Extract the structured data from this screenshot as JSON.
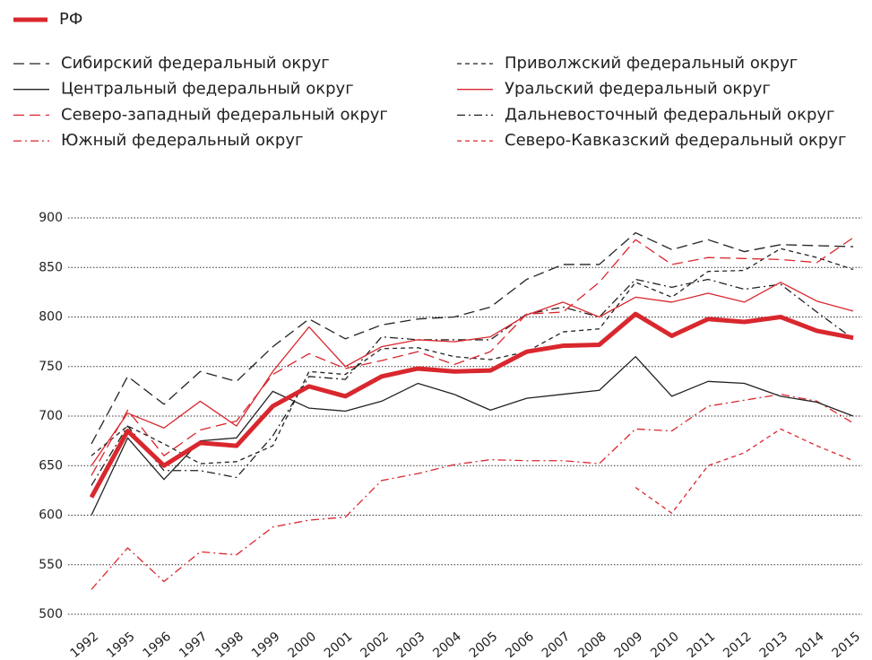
{
  "chart_data": {
    "type": "line",
    "categories": [
      "1992",
      "1995",
      "1996",
      "1997",
      "1998",
      "1999",
      "2000",
      "2001",
      "2002",
      "2003",
      "2004",
      "2005",
      "2006",
      "2007",
      "2008",
      "2009",
      "2010",
      "2011",
      "2012",
      "2013",
      "2014",
      "2015"
    ],
    "ylim": [
      500,
      900
    ],
    "yticks": [
      500,
      550,
      600,
      650,
      700,
      750,
      800,
      850,
      900
    ],
    "grid": true,
    "series": [
      {
        "name": "РФ",
        "color": "#d9272e",
        "line_style": "solid",
        "line_width": 5,
        "values": [
          618,
          685,
          650,
          673,
          670,
          710,
          730,
          720,
          740,
          748,
          745,
          746,
          765,
          771,
          772,
          803,
          781,
          798,
          795,
          800,
          786,
          779
        ]
      },
      {
        "name": "Сибирский федеральный округ",
        "color": "#222222",
        "line_style": "long-dash",
        "line_width": 1.3,
        "values": [
          672,
          740,
          712,
          745,
          735,
          770,
          798,
          778,
          792,
          798,
          800,
          810,
          838,
          853,
          853,
          885,
          868,
          878,
          866,
          873,
          872,
          871
        ]
      },
      {
        "name": "Центральный федеральный округ",
        "color": "#222222",
        "line_style": "solid",
        "line_width": 1.3,
        "values": [
          600,
          678,
          636,
          675,
          678,
          725,
          708,
          705,
          715,
          733,
          722,
          706,
          718,
          722,
          726,
          760,
          720,
          735,
          733,
          720,
          714,
          700
        ]
      },
      {
        "name": "Северо-западный федеральный округ",
        "color": "#d9272e",
        "line_style": "long-dash",
        "line_width": 1.3,
        "values": [
          640,
          706,
          660,
          686,
          695,
          742,
          763,
          748,
          756,
          765,
          752,
          765,
          803,
          805,
          835,
          878,
          853,
          860,
          859,
          858,
          855,
          880
        ]
      },
      {
        "name": "Южный федеральный округ",
        "color": "#d9272e",
        "line_style": "dash-dot",
        "line_width": 1.3,
        "values": [
          525,
          567,
          533,
          563,
          560,
          588,
          595,
          598,
          635,
          642,
          651,
          656,
          655,
          655,
          652,
          687,
          685,
          710,
          716,
          722,
          715,
          693
        ]
      },
      {
        "name": "Приволжский федеральный округ",
        "color": "#222222",
        "line_style": "short-dash",
        "line_width": 1.3,
        "values": [
          660,
          690,
          672,
          652,
          654,
          670,
          745,
          742,
          768,
          769,
          760,
          757,
          765,
          785,
          788,
          835,
          820,
          846,
          847,
          869,
          860,
          848
        ]
      },
      {
        "name": "Уральский федеральный округ",
        "color": "#d9272e",
        "line_style": "solid",
        "line_width": 1.3,
        "values": [
          650,
          703,
          688,
          715,
          690,
          745,
          790,
          750,
          770,
          777,
          775,
          780,
          802,
          815,
          800,
          820,
          815,
          824,
          815,
          835,
          816,
          806
        ]
      },
      {
        "name": "Дальневосточный федеральный округ",
        "color": "#222222",
        "line_style": "dash-dot",
        "line_width": 1.3,
        "values": [
          630,
          690,
          645,
          645,
          638,
          680,
          740,
          737,
          780,
          777,
          777,
          777,
          803,
          810,
          800,
          838,
          830,
          838,
          828,
          833,
          805,
          778
        ]
      },
      {
        "name": "Северо-Кавказский федеральный округ",
        "color": "#d9272e",
        "line_style": "short-dash",
        "line_width": 1.3,
        "values": [
          null,
          null,
          null,
          null,
          null,
          null,
          null,
          null,
          null,
          null,
          null,
          null,
          null,
          null,
          null,
          628,
          602,
          650,
          663,
          687,
          670,
          655
        ]
      }
    ]
  }
}
